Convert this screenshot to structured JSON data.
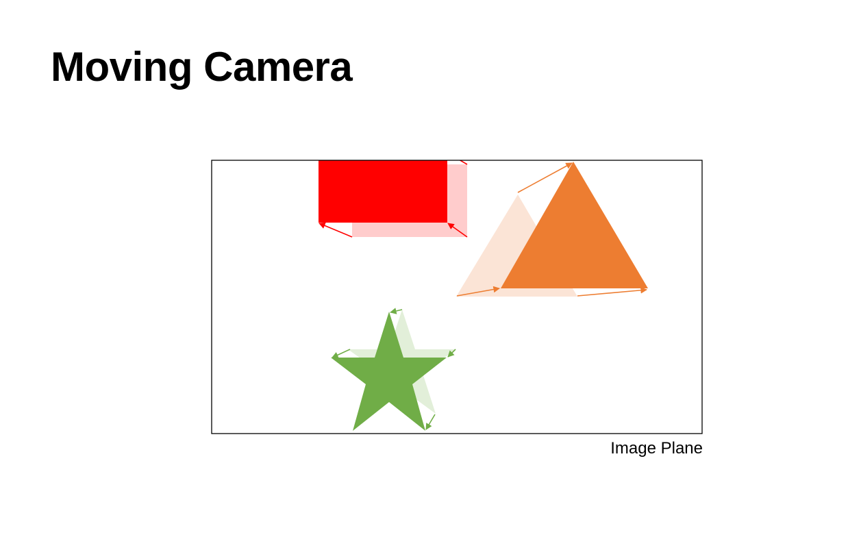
{
  "slide": {
    "title": "Moving Camera",
    "plane_label": "Image Plane"
  },
  "colors": {
    "rectangle": "#ff0000",
    "rectangle_ghost": "#ffcccc",
    "triangle": "#ed7d31",
    "triangle_ghost": "#fbe4d6",
    "star": "#70ad47",
    "star_ghost": "#e2efd9",
    "frame": "#000000"
  }
}
